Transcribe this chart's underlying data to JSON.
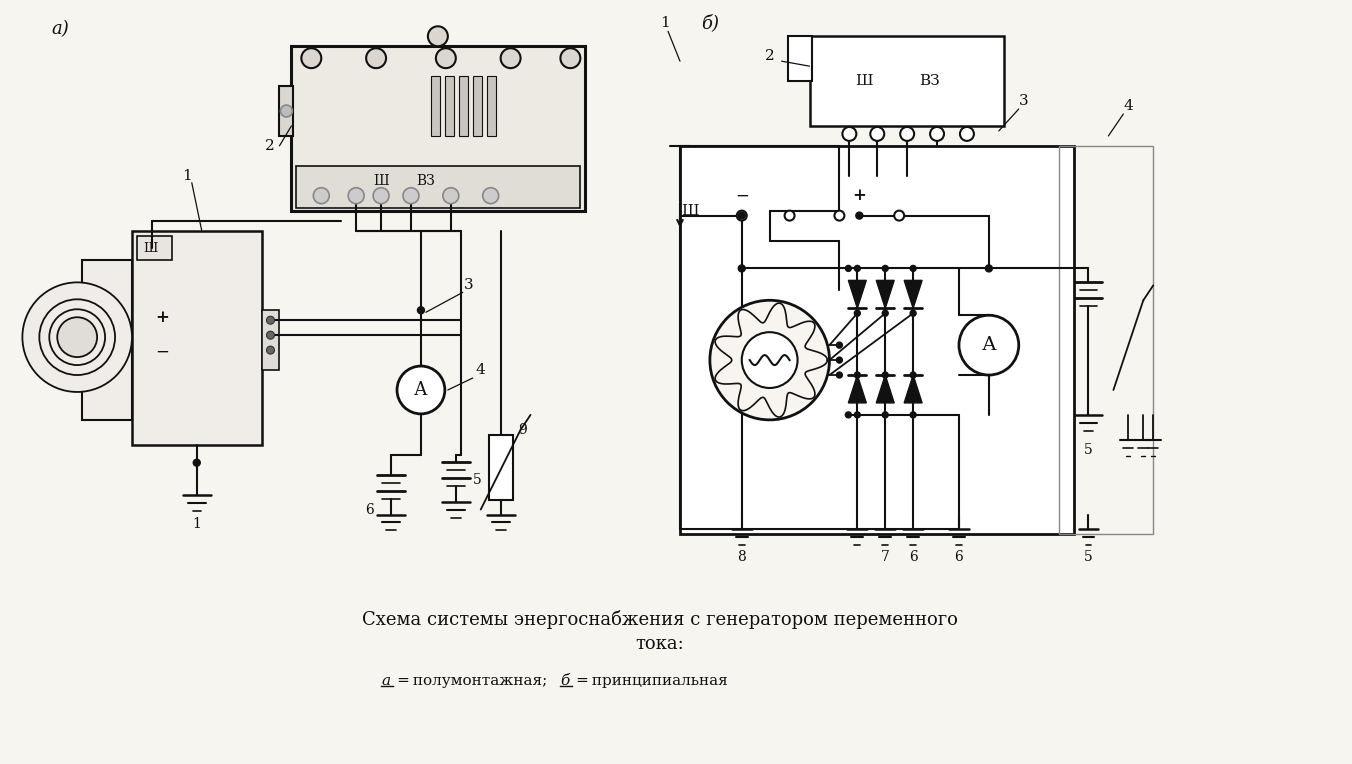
{
  "title_line1": "Схема системы энергоснабжения с генератором переменного",
  "title_line2": "тока:",
  "subtitle_a": "а",
  "subtitle_b": "б",
  "subtitle_rest": " ═ полумонтажная;  ═ принципиальная",
  "bg_color": "#f7f5f0",
  "line_color": "#111111",
  "label_a": "а)",
  "label_b": "б)",
  "figsize": [
    13.52,
    7.64
  ],
  "dpi": 100
}
